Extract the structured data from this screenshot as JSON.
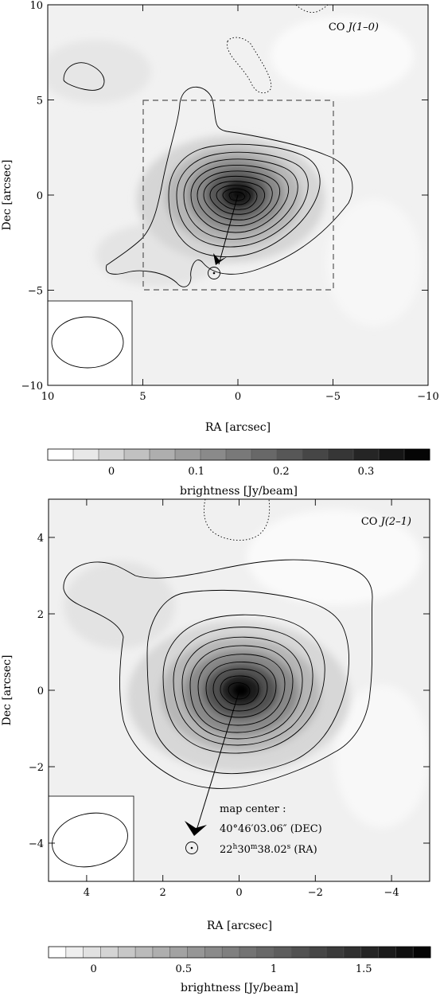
{
  "chart_data": [
    {
      "type": "heatmap",
      "panel_label_main": "CO ",
      "panel_label_italic": "J(1–0)",
      "xlabel": "RA [arcsec]",
      "ylabel": "Dec [arcsec]",
      "xlim": [
        10,
        -10
      ],
      "ylim": [
        -10,
        10
      ],
      "x_ticks": [
        10,
        5,
        0,
        -5,
        -10
      ],
      "x_tick_labels": [
        "10",
        "5",
        "0",
        "−5",
        "−10"
      ],
      "y_ticks": [
        10,
        5,
        0,
        -5,
        -10
      ],
      "y_tick_labels": [
        "10",
        "5",
        "0",
        "−5",
        "−10"
      ],
      "peak": {
        "x": 0,
        "y": 0,
        "value": 0.37
      },
      "offset_source": {
        "x": 1.2,
        "y": -4.1
      },
      "dashed_box": {
        "x": [
          5,
          -5
        ],
        "y": [
          -5,
          5
        ]
      },
      "beam": {
        "center": {
          "x": 8.5,
          "y": -7.7
        },
        "major": 7.0,
        "minor": 5.2
      },
      "colorbar": {
        "label": "brightness [Jy/beam]",
        "range": [
          -0.075,
          0.375
        ],
        "ticks": [
          0,
          0.1,
          0.2,
          0.3
        ],
        "tick_labels": [
          "0",
          "0.1",
          "0.2",
          "0.3"
        ]
      }
    },
    {
      "type": "heatmap",
      "panel_label_main": "CO ",
      "panel_label_italic": "J(2–1)",
      "xlabel": "RA [arcsec]",
      "ylabel": "Dec [arcsec]",
      "xlim": [
        5,
        -5
      ],
      "ylim": [
        -5,
        5
      ],
      "x_ticks": [
        4,
        2,
        0,
        -2,
        -4
      ],
      "x_tick_labels": [
        "4",
        "2",
        "0",
        "−2",
        "−4"
      ],
      "y_ticks": [
        4,
        2,
        0,
        -2,
        -4
      ],
      "y_tick_labels": [
        "4",
        "2",
        "0",
        "−2",
        "−4"
      ],
      "peak": {
        "x": 0,
        "y": 0,
        "value": 1.85
      },
      "offset_source": {
        "x": 1.3,
        "y": -4.1
      },
      "beam": {
        "center": {
          "x": 3.8,
          "y": -4.0
        },
        "major": 3.5,
        "minor": 2.7
      },
      "map_center": {
        "title": "map center :",
        "dec": "40°46′03.06″ (DEC)",
        "ra_hours": "22",
        "ra_h_sup": "h",
        "ra_minutes": "30",
        "ra_m_sup": "m",
        "ra_seconds": "38.02",
        "ra_s_sup": "s",
        "ra_suffix": " (RA)"
      },
      "colorbar": {
        "label": "brightness [Jy/beam]",
        "range": [
          -0.25,
          1.87
        ],
        "ticks": [
          0,
          0.5,
          1,
          1.5
        ],
        "tick_labels": [
          "0",
          "0.5",
          "1",
          "1.5"
        ]
      }
    }
  ]
}
